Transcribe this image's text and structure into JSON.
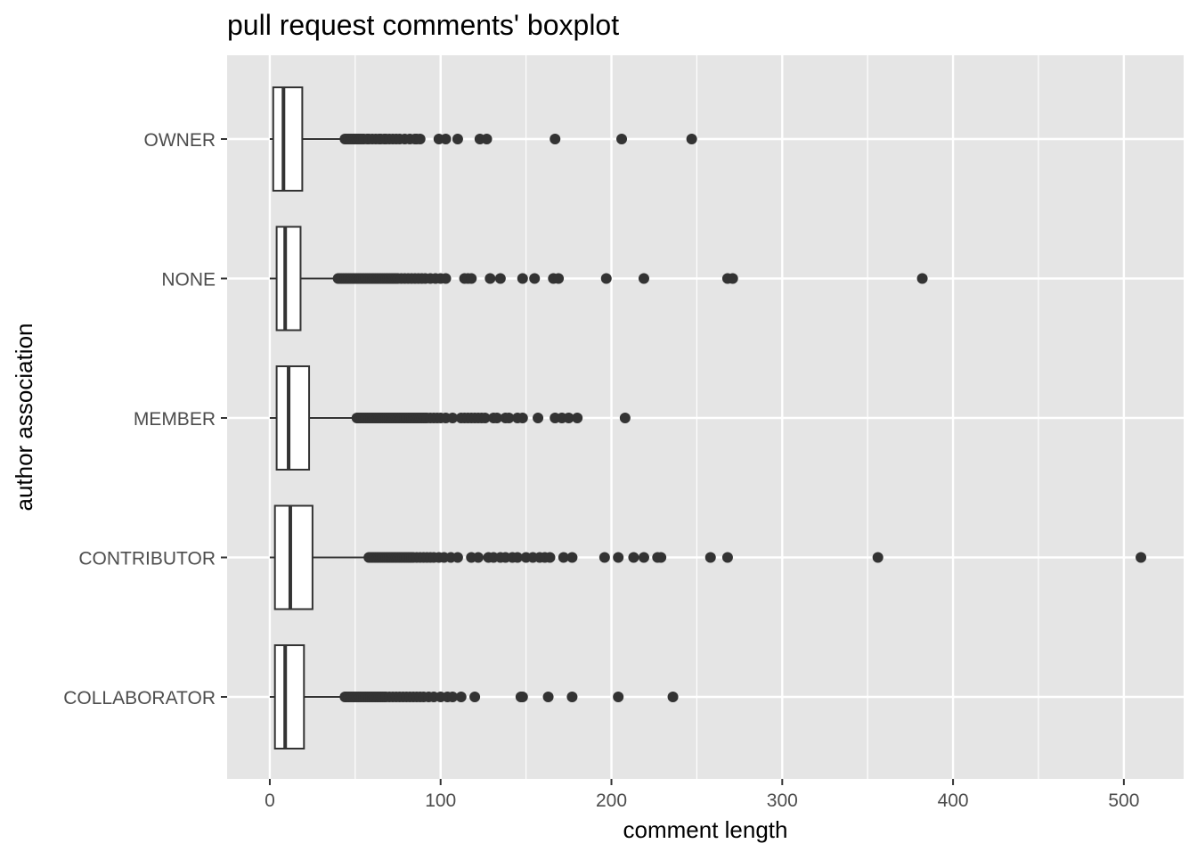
{
  "chart_data": {
    "type": "boxplot",
    "orientation": "horizontal",
    "title": "pull request comments' boxplot",
    "xlabel": "comment length",
    "ylabel": "author association",
    "xlim": [
      -25,
      535
    ],
    "x_ticks": [
      0,
      100,
      200,
      300,
      400,
      500
    ],
    "x_minor_ticks": [
      50,
      150,
      250,
      350,
      450
    ],
    "grid": true,
    "legend": "none",
    "colors": {
      "panel_background": "#e5e5e5",
      "grid_line": "#ffffff",
      "box_fill": "#ffffff",
      "box_stroke": "#333333",
      "outlier": "#333333",
      "axis_text": "#4d4d4d",
      "title_text": "#000000"
    },
    "categories": [
      "OWNER",
      "NONE",
      "MEMBER",
      "CONTRIBUTOR",
      "COLLABORATOR"
    ],
    "series": [
      {
        "category": "OWNER",
        "whisker_low": 0,
        "q1": 2,
        "median": 8,
        "q3": 19,
        "whisker_high": 43,
        "outliers": [
          44,
          45,
          46,
          47,
          48,
          49,
          50,
          51,
          52,
          53,
          54,
          55,
          57,
          58,
          60,
          62,
          64,
          65,
          67,
          68,
          70,
          72,
          74,
          76,
          79,
          82,
          85,
          86,
          88,
          99,
          103,
          110,
          123,
          127,
          167,
          206,
          247
        ]
      },
      {
        "category": "NONE",
        "whisker_low": 0,
        "q1": 4,
        "median": 9,
        "q3": 18,
        "whisker_high": 38,
        "outliers": [
          40,
          41,
          42,
          43,
          44,
          45,
          46,
          47,
          48,
          49,
          50,
          51,
          52,
          53,
          54,
          55,
          56,
          57,
          58,
          59,
          60,
          61,
          62,
          63,
          64,
          65,
          66,
          67,
          68,
          69,
          70,
          71,
          72,
          73,
          74,
          75,
          77,
          79,
          81,
          83,
          85,
          87,
          89,
          91,
          94,
          97,
          100,
          103,
          114,
          116,
          118,
          129,
          135,
          148,
          155,
          166,
          169,
          197,
          219,
          268,
          271,
          382
        ]
      },
      {
        "category": "MEMBER",
        "whisker_low": 0,
        "q1": 4,
        "median": 11,
        "q3": 23,
        "whisker_high": 50,
        "outliers": [
          51,
          52,
          53,
          54,
          55,
          56,
          57,
          58,
          59,
          60,
          61,
          62,
          63,
          64,
          65,
          66,
          67,
          68,
          69,
          70,
          71,
          72,
          73,
          74,
          75,
          76,
          77,
          78,
          79,
          80,
          81,
          82,
          83,
          84,
          85,
          86,
          87,
          88,
          89,
          90,
          91,
          92,
          94,
          96,
          98,
          100,
          103,
          107,
          112,
          114,
          116,
          118,
          120,
          122,
          124,
          126,
          131,
          133,
          138,
          140,
          145,
          148,
          157,
          167,
          171,
          175,
          180,
          208
        ]
      },
      {
        "category": "CONTRIBUTOR",
        "whisker_low": 0,
        "q1": 3,
        "median": 12,
        "q3": 25,
        "whisker_high": 56,
        "outliers": [
          58,
          59,
          60,
          61,
          62,
          63,
          64,
          65,
          66,
          67,
          68,
          69,
          70,
          71,
          72,
          73,
          74,
          75,
          76,
          77,
          78,
          79,
          80,
          81,
          82,
          83,
          84,
          86,
          88,
          90,
          92,
          94,
          96,
          99,
          102,
          106,
          110,
          118,
          122,
          128,
          131,
          135,
          138,
          142,
          145,
          150,
          154,
          158,
          161,
          164,
          172,
          177,
          196,
          204,
          213,
          219,
          227,
          229,
          258,
          268,
          356,
          510
        ]
      },
      {
        "category": "COLLABORATOR",
        "whisker_low": 0,
        "q1": 3,
        "median": 9,
        "q3": 20,
        "whisker_high": 43,
        "outliers": [
          44,
          45,
          46,
          47,
          48,
          49,
          50,
          51,
          52,
          53,
          54,
          55,
          56,
          57,
          58,
          59,
          60,
          61,
          62,
          63,
          64,
          65,
          66,
          67,
          68,
          70,
          72,
          74,
          76,
          78,
          80,
          82,
          84,
          86,
          88,
          90,
          93,
          96,
          100,
          104,
          107,
          112,
          120,
          147,
          148,
          163,
          177,
          204,
          236
        ]
      }
    ]
  }
}
